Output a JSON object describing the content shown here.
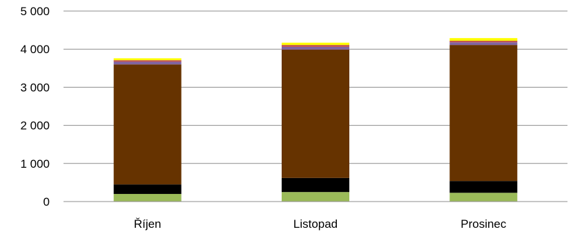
{
  "chart_data": {
    "type": "bar",
    "stacked": true,
    "categories": [
      "Říjen",
      "Listopad",
      "Prosinec"
    ],
    "series": [
      {
        "values": [
          200,
          250,
          230
        ],
        "color": "#9bbb59"
      },
      {
        "values": [
          250,
          370,
          310
        ],
        "color": "#000000"
      },
      {
        "values": [
          3150,
          3370,
          3570
        ],
        "color": "#663300"
      },
      {
        "values": [
          70,
          70,
          70
        ],
        "color": "#8064a2"
      },
      {
        "values": [
          40,
          50,
          40
        ],
        "color": "#c0504d"
      },
      {
        "values": [
          50,
          60,
          70
        ],
        "color": "#ffff00"
      }
    ],
    "yticks": [
      "0",
      "1 000",
      "2 000",
      "3 000",
      "4 000",
      "5 000"
    ],
    "ylim": [
      0,
      5000
    ],
    "grid": true,
    "legend": "none"
  }
}
